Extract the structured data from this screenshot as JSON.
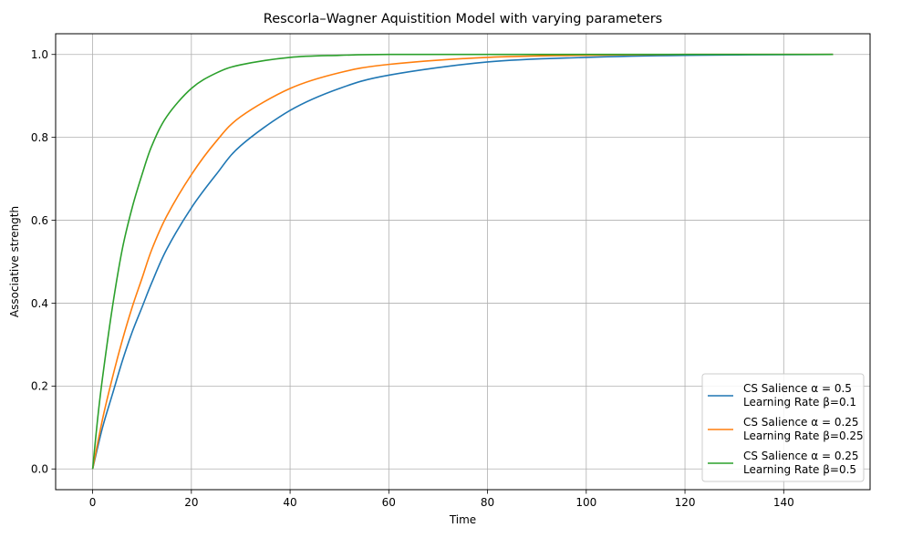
{
  "chart_data": {
    "type": "line",
    "title": "Rescorla–Wagner Aquistition Model with varying parameters",
    "xlabel": "Time",
    "ylabel": "Associative strength",
    "xlim": [
      -7.5,
      157.5
    ],
    "ylim": [
      -0.05,
      1.05
    ],
    "xticks": [
      0,
      20,
      40,
      60,
      80,
      100,
      120,
      140
    ],
    "yticks": [
      0.0,
      0.2,
      0.4,
      0.6,
      0.8,
      1.0
    ],
    "xtick_labels": [
      "0",
      "20",
      "40",
      "60",
      "80",
      "100",
      "120",
      "140"
    ],
    "ytick_labels": [
      "0.0",
      "0.2",
      "0.4",
      "0.6",
      "0.8",
      "1.0"
    ],
    "grid": true,
    "legend_position": "lower-right",
    "x_range": [
      0,
      150
    ],
    "series": [
      {
        "legend_line1": "CS Salience α = 0.5",
        "legend_line2": "Learning Rate β=0.1",
        "color": "#1f77b4",
        "x": [
          0,
          2,
          4,
          6,
          8,
          10,
          12,
          15,
          20,
          25,
          30,
          40,
          50,
          60,
          80,
          100,
          120,
          150
        ],
        "y": [
          0.0,
          0.1,
          0.18,
          0.26,
          0.33,
          0.39,
          0.45,
          0.53,
          0.63,
          0.71,
          0.78,
          0.865,
          0.918,
          0.95,
          0.982,
          0.993,
          0.998,
          1.0
        ]
      },
      {
        "legend_line1": "CS Salience α = 0.25",
        "legend_line2": "Learning Rate β=0.25",
        "color": "#ff7f0e",
        "x": [
          0,
          2,
          4,
          6,
          8,
          10,
          12,
          15,
          20,
          25,
          30,
          40,
          50,
          60,
          80,
          100,
          120,
          150
        ],
        "y": [
          0.0,
          0.12,
          0.22,
          0.31,
          0.39,
          0.46,
          0.53,
          0.61,
          0.71,
          0.79,
          0.85,
          0.918,
          0.956,
          0.976,
          0.993,
          0.998,
          1.0,
          1.0
        ]
      },
      {
        "legend_line1": "CS Salience α = 0.25",
        "legend_line2": "Learning Rate β=0.5",
        "color": "#2ca02c",
        "x": [
          0,
          1,
          2,
          4,
          6,
          8,
          10,
          12,
          15,
          20,
          25,
          30,
          40,
          50,
          60,
          80,
          100,
          150
        ],
        "y": [
          0.0,
          0.12,
          0.22,
          0.39,
          0.53,
          0.63,
          0.71,
          0.78,
          0.85,
          0.918,
          0.955,
          0.975,
          0.993,
          0.998,
          1.0,
          1.0,
          1.0,
          1.0
        ]
      }
    ]
  }
}
